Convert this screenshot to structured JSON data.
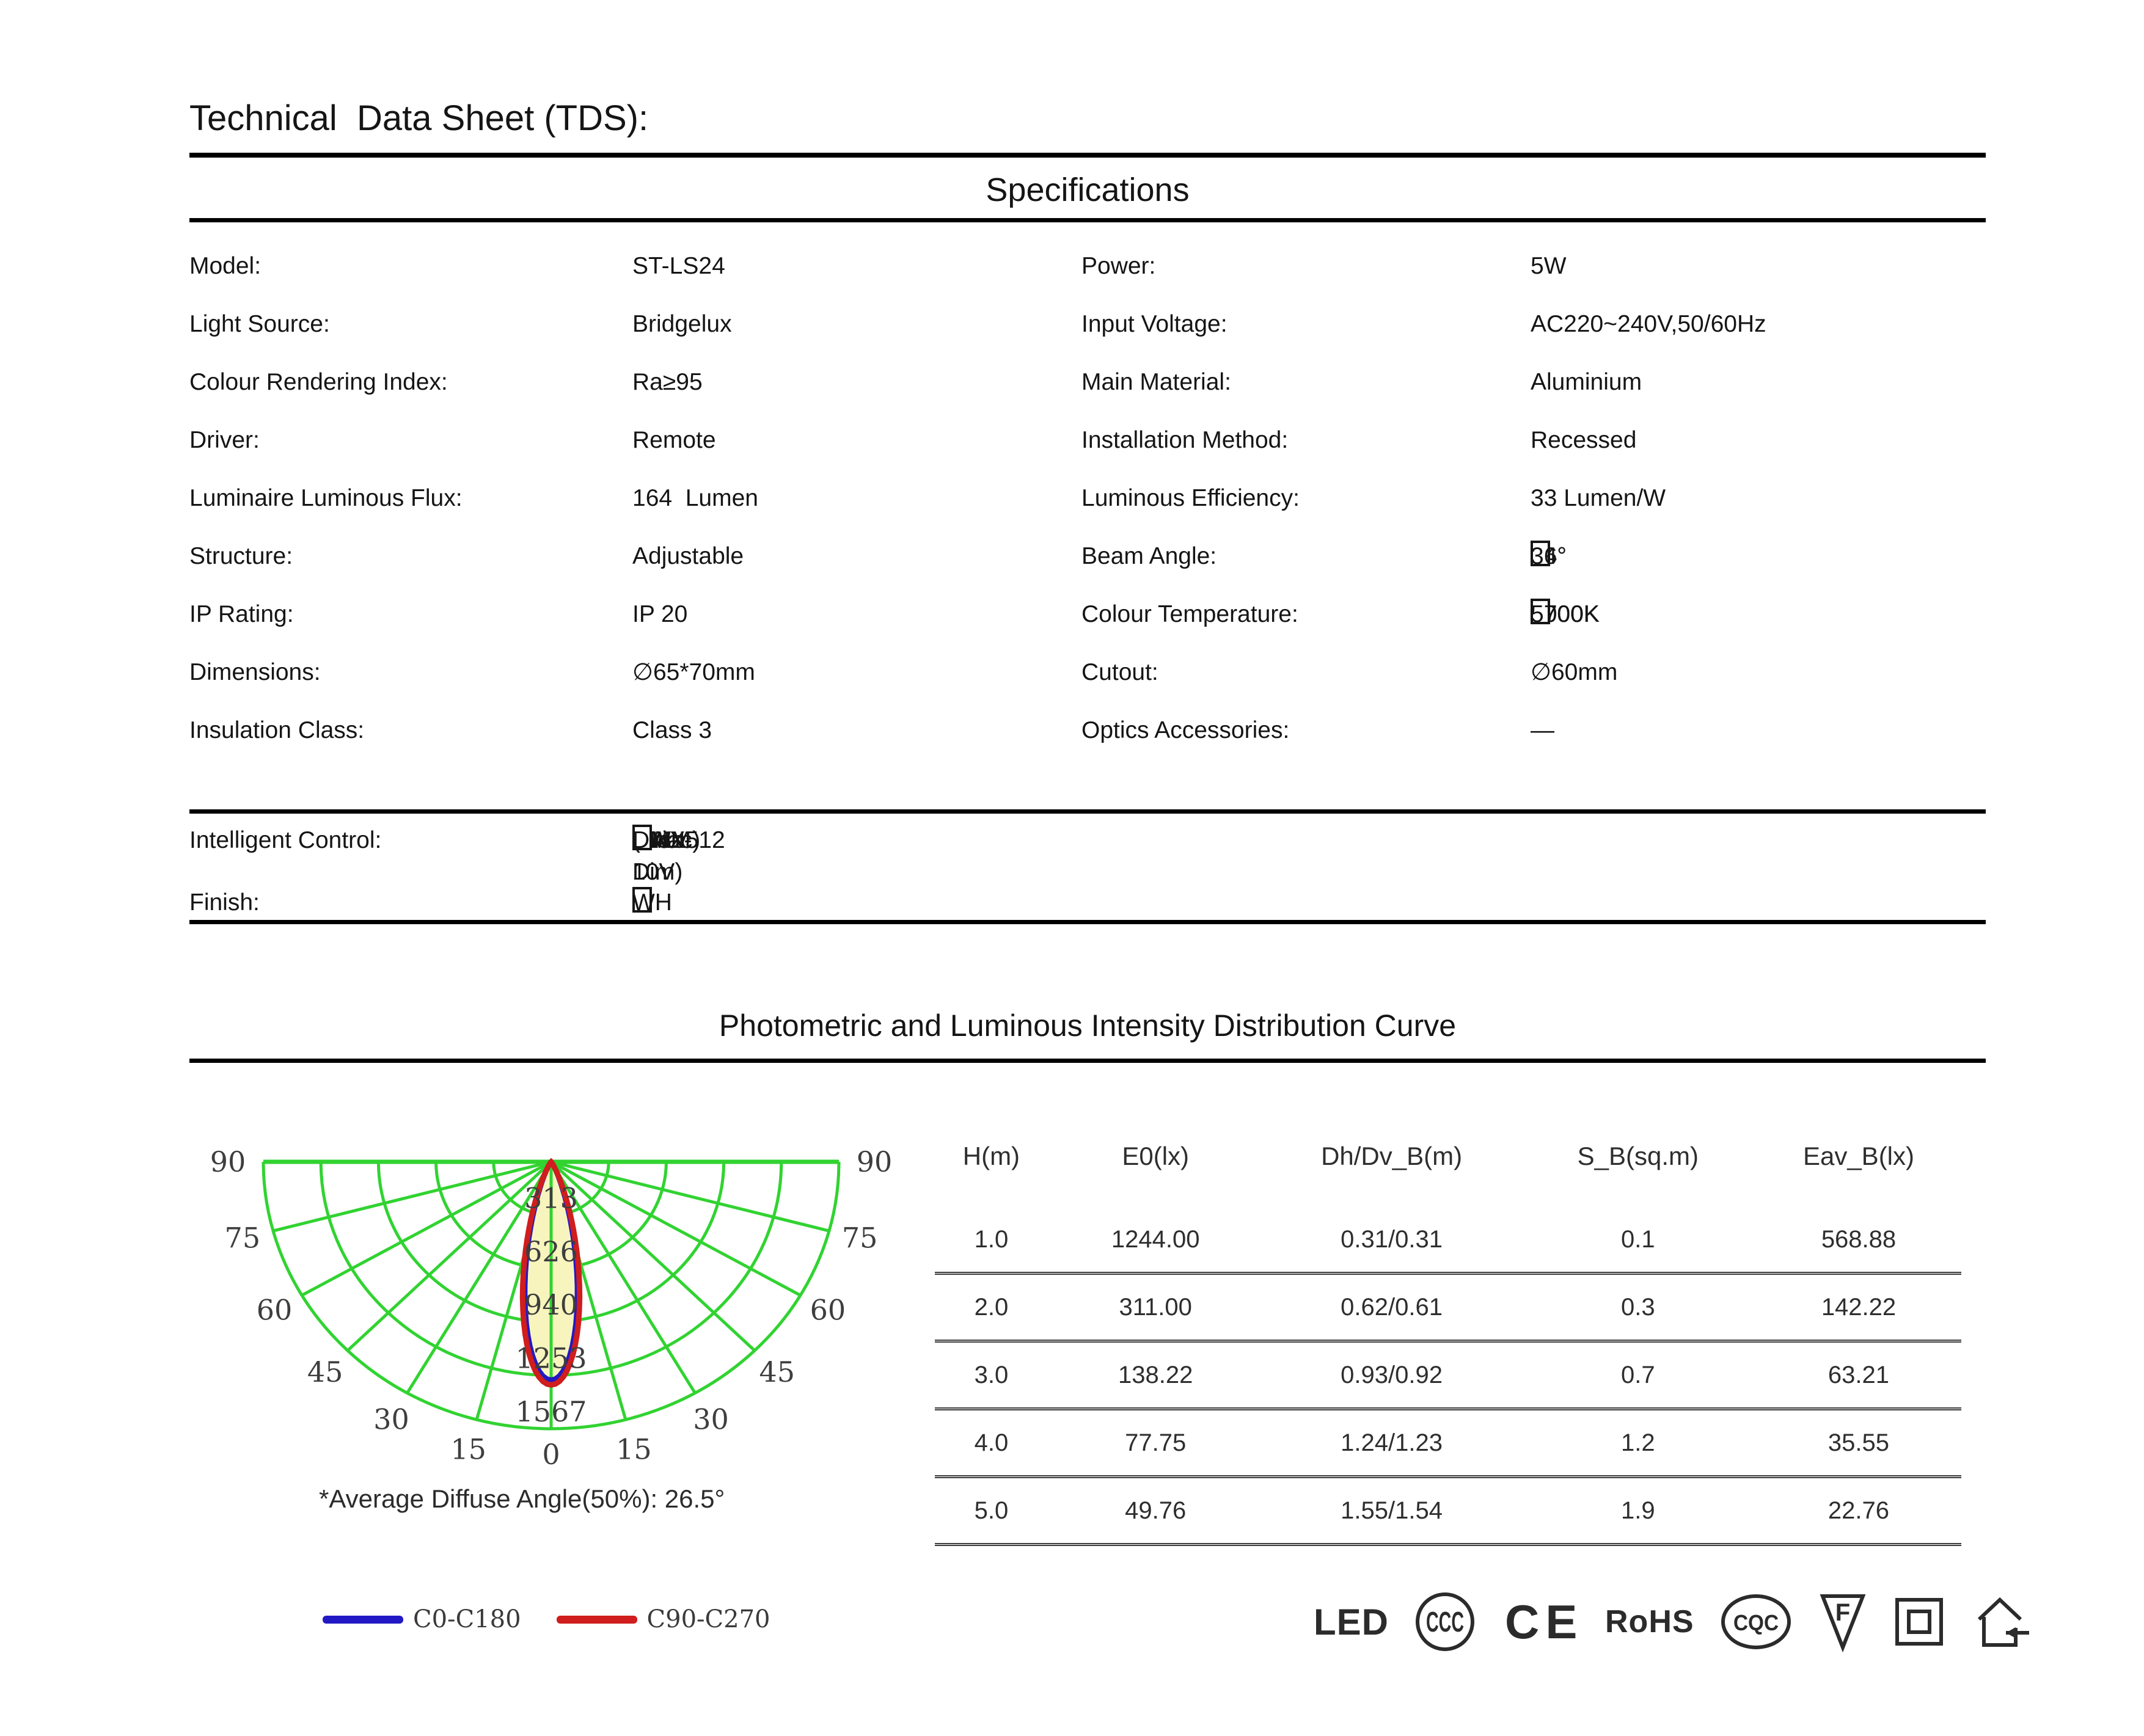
{
  "title": "Technical  Data Sheet (TDS):",
  "specifications": {
    "heading": "Specifications",
    "left": [
      {
        "label": "Model:",
        "value": "ST-LS24"
      },
      {
        "label": "Light Source:",
        "value": "Bridgelux"
      },
      {
        "label": "Colour Rendering Index:",
        "value": "Ra≥95"
      },
      {
        "label": "Driver:",
        "value": "Remote"
      },
      {
        "label": "Luminaire Luminous Flux:",
        "value": "164  Lumen"
      },
      {
        "label": "Structure:",
        "value": "Adjustable"
      },
      {
        "label": "IP Rating:",
        "value": "IP 20"
      },
      {
        "label": "Dimensions:",
        "value": "∅65*70mm"
      },
      {
        "label": "Insulation Class:",
        "value": "Class 3"
      }
    ],
    "right": [
      {
        "label": "Power:",
        "value": "5W"
      },
      {
        "label": "Input Voltage:",
        "value": "AC220~240V,50/60Hz"
      },
      {
        "label": "Main Material:",
        "value": "Aluminium"
      },
      {
        "label": "Installation Method:",
        "value": "Recessed"
      },
      {
        "label": "Luminous Efficiency:",
        "value": "33 Lumen/W"
      },
      {
        "label": "Beam Angle:",
        "checkboxes": [
          "24°",
          "36°"
        ]
      },
      {
        "label": "Colour Temperature:",
        "checkboxes": [
          "2700K",
          "3000K",
          "4000K",
          "5700K"
        ]
      },
      {
        "label": "Cutout:",
        "value": "∅60mm"
      },
      {
        "label": "Optics Accessories:",
        "value": "—"
      }
    ],
    "control": {
      "label": "Intelligent Control:",
      "checkboxes": [
        "(Non-Dim)",
        "(Triac)",
        "DALI",
        "0-10V",
        "PWM",
        "DMX512"
      ]
    },
    "finish": {
      "label": "Finish:",
      "checkboxes": [
        "WH"
      ]
    }
  },
  "photometric": {
    "heading": "Photometric and Luminous Intensity Distribution Curve",
    "note": "*Average Diffuse Angle(50%): 26.5°",
    "legend": [
      {
        "label": "C0-C180",
        "color": "#2319c4"
      },
      {
        "label": "C90-C270",
        "color": "#d01d1d"
      }
    ]
  },
  "chart_data": {
    "type": "polar",
    "title": "Photometric and Luminous Intensity Distribution Curve",
    "angle_ticks_deg": [
      0,
      15,
      30,
      45,
      60,
      75,
      90
    ],
    "intensity_rings_cd": [
      313,
      626,
      940,
      1253,
      1567
    ],
    "max_ring_cd": 1567,
    "average_diffuse_angle_50pct_deg": 26.5,
    "series": [
      {
        "name": "C0-C180",
        "color": "#2319c4",
        "peak_cd": 1280,
        "half_angle_deg": 12.4
      },
      {
        "name": "C90-C270",
        "color": "#d01d1d",
        "peak_cd": 1310,
        "half_angle_deg": 13.25
      }
    ],
    "grid_color": "#31d331",
    "lobe_fill": "#f7f5bd",
    "legend_position": "bottom-left"
  },
  "table": {
    "headers": [
      "H(m)",
      "E0(lx)",
      "Dh/Dv_B(m)",
      "S_B(sq.m)",
      "Eav_B(lx)"
    ],
    "rows": [
      [
        "1.0",
        "1244.00",
        "0.31/0.31",
        "0.1",
        "568.88"
      ],
      [
        "2.0",
        "311.00",
        "0.62/0.61",
        "0.3",
        "142.22"
      ],
      [
        "3.0",
        "138.22",
        "0.93/0.92",
        "0.7",
        "63.21"
      ],
      [
        "4.0",
        "77.75",
        "1.24/1.23",
        "1.2",
        "35.55"
      ],
      [
        "5.0",
        "49.76",
        "1.55/1.54",
        "1.9",
        "22.76"
      ]
    ]
  },
  "certifications": {
    "led_label": "LED",
    "ccc_label": "CCC",
    "ce_label": "CE",
    "rohs_label": "RoHS",
    "cqc_label": "CQC",
    "f_mark_letter": "F",
    "marks": [
      "led",
      "ccc",
      "ce",
      "rohs",
      "cqc",
      "f-enclosure",
      "double-insulation",
      "indoor-luminaire"
    ]
  }
}
